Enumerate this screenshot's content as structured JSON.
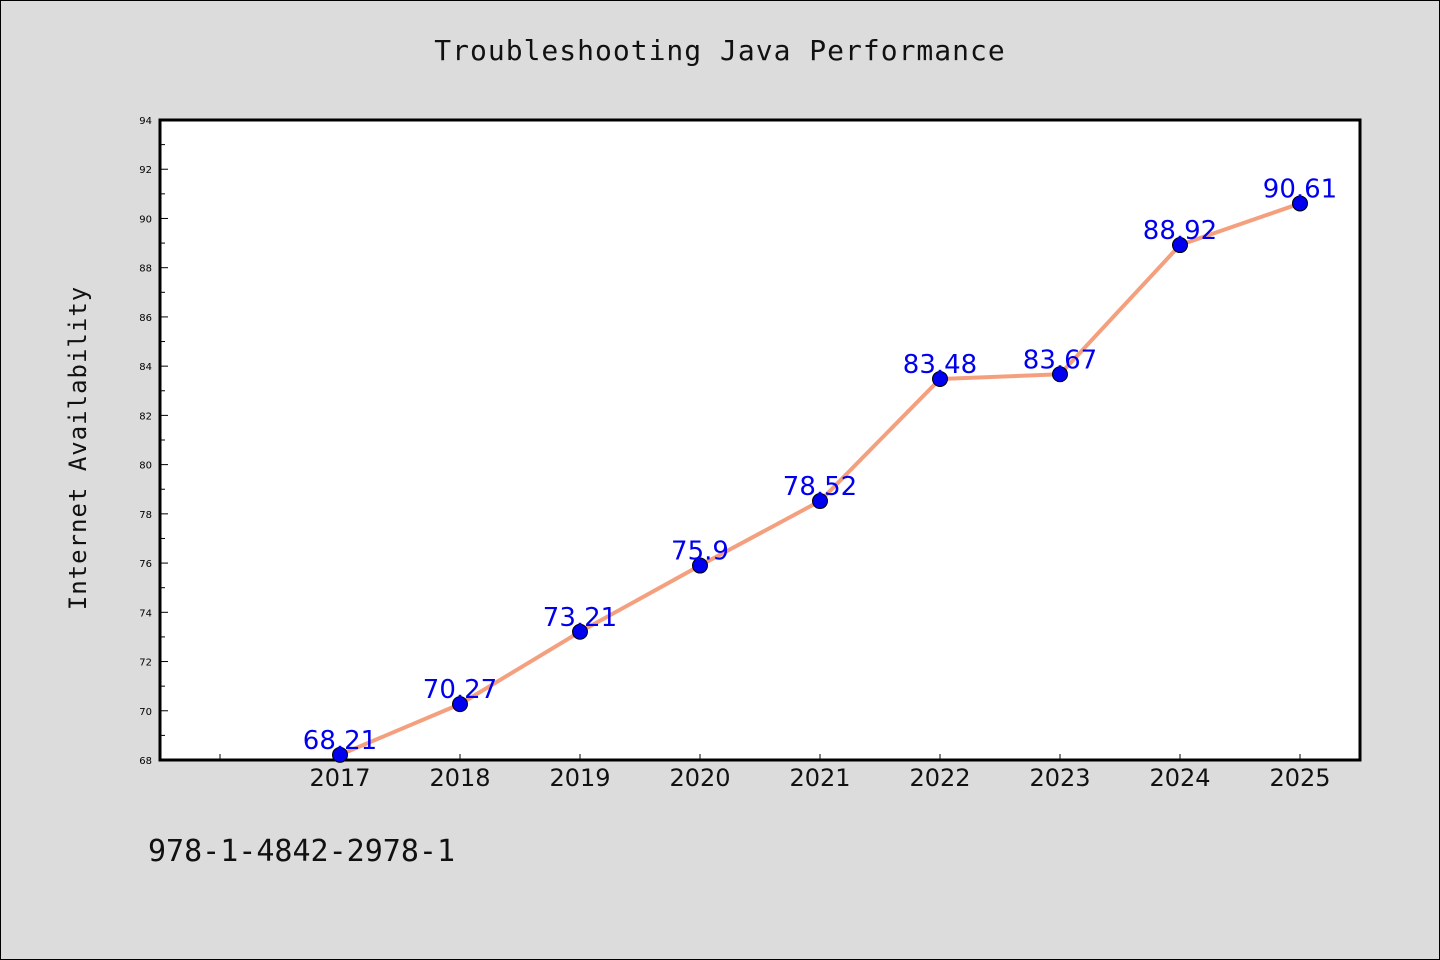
{
  "chart_data": {
    "type": "line",
    "title": "Troubleshooting Java Performance",
    "xlabel": "",
    "ylabel": "Internet Availability",
    "categories": [
      "2017",
      "2018",
      "2019",
      "2020",
      "2021",
      "2022",
      "2023",
      "2024",
      "2025"
    ],
    "values": [
      68.21,
      70.27,
      73.21,
      75.9,
      78.52,
      83.48,
      83.67,
      88.92,
      90.61
    ],
    "data_labels": [
      "68.21",
      "70.27",
      "73.21",
      "75.9",
      "78.52",
      "83.48",
      "83.67",
      "88.92",
      "90.61"
    ],
    "ylim": [
      68,
      94
    ],
    "y_ticks": [
      "68",
      "70",
      "72",
      "74",
      "76",
      "78",
      "80",
      "82",
      "84",
      "86",
      "88",
      "90",
      "92",
      "94"
    ],
    "grid": false,
    "legend": "none",
    "colors": {
      "line": "#f4a07e",
      "marker": "#0000ee",
      "data_label": "#0000ee",
      "background": "#dcdcdc",
      "plot_background": "#ffffff"
    }
  },
  "footer_text": "978-1-4842-2978-1"
}
